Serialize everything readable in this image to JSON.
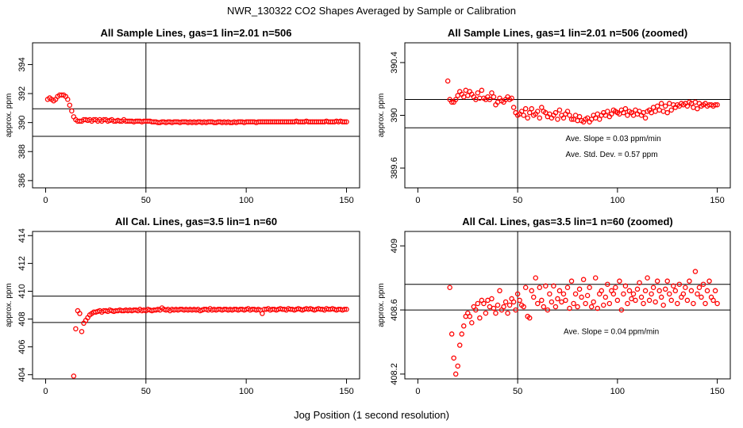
{
  "figure": {
    "title": "NWR_130322  CO2 Shapes Averaged by Sample or Calibration",
    "xlabel": "Jog Position (1 second resolution)"
  },
  "colors": {
    "points": "#ff0000",
    "axes": "#000000"
  },
  "chart_data": [
    {
      "type": "scatter",
      "title": "All Sample Lines, gas=1 lin=2.01 n=506",
      "ylabel": "approx. ppm",
      "xlim": [
        0,
        150
      ],
      "ylim": [
        385.5,
        395.5
      ],
      "xticks": [
        0,
        50,
        100,
        150
      ],
      "yticks": [
        386,
        388,
        390,
        392,
        394
      ],
      "hlines": [
        390.95,
        389.05
      ],
      "vline": 50,
      "annotations": [],
      "series": [
        {
          "x_start": 1,
          "x_step": 1,
          "y": [
            391.6,
            391.7,
            391.6,
            391.5,
            391.6,
            391.8,
            391.9,
            391.9,
            391.9,
            391.8,
            391.6,
            391.2,
            390.8,
            390.4,
            390.2,
            390.1,
            390.1,
            390.1,
            390.2,
            390.2,
            390.15,
            390.2,
            390.1,
            390.2,
            390.2,
            390.1,
            390.2,
            390.1,
            390.2,
            390.2,
            390.1,
            390.15,
            390.2,
            390.1,
            390.1,
            390.15,
            390.1,
            390.1,
            390.2,
            390.1,
            390.1,
            390.1,
            390.1,
            390.05,
            390.1,
            390.1,
            390.1,
            390.05,
            390.1,
            390.1,
            390.1,
            390.1,
            390.05,
            390.05,
            390.05,
            390.0,
            390.0,
            390.05,
            390.05,
            390.0,
            390.05,
            390.05,
            390.0,
            390.05,
            390.05,
            390.05,
            390.0,
            390.05,
            390.05,
            390.05,
            390.0,
            390.05,
            390.0,
            390.05,
            390.0,
            390.05,
            390.05,
            390.0,
            390.05,
            390.0,
            390.05,
            390.05,
            390.05,
            390.0,
            390.0,
            390.05,
            390.05,
            390.0,
            390.05,
            390.0,
            390.05,
            390.0,
            390.0,
            390.05,
            390.0,
            390.05,
            390.05,
            390.05,
            390.0,
            390.05,
            390.05,
            390.05,
            390.05,
            390.05,
            390.0,
            390.05,
            390.05,
            390.05,
            390.05,
            390.05,
            390.05,
            390.05,
            390.05,
            390.05,
            390.05,
            390.05,
            390.05,
            390.05,
            390.05,
            390.05,
            390.05,
            390.05,
            390.05,
            390.05,
            390.1,
            390.05,
            390.05,
            390.05,
            390.05,
            390.1,
            390.05,
            390.05,
            390.05,
            390.05,
            390.05,
            390.05,
            390.05,
            390.05,
            390.05,
            390.1,
            390.05,
            390.05,
            390.05,
            390.05,
            390.1,
            390.05,
            390.1,
            390.05,
            390.05,
            390.05
          ]
        }
      ]
    },
    {
      "type": "scatter",
      "title": "All Sample Lines, gas=1 lin=2.01 n=506 (zoomed)",
      "ylabel": "approx. ppm",
      "xlim": [
        0,
        150
      ],
      "ylim": [
        389.45,
        390.55
      ],
      "xticks": [
        0,
        50,
        100,
        150
      ],
      "yticks": [
        389.6,
        390.0,
        390.4
      ],
      "hlines": [
        390.12,
        389.905
      ],
      "vline": 50,
      "annotations": [
        {
          "text": "Ave. Slope =  0.03  ppm/min",
          "x": 74,
          "y": 389.805
        },
        {
          "text": "Ave. Std. Dev. =  0.57  ppm",
          "x": 74,
          "y": 389.685
        }
      ],
      "series": [
        {
          "x_start": 15,
          "x_step": 1,
          "y": [
            390.26,
            390.12,
            390.1,
            390.1,
            390.12,
            390.15,
            390.18,
            390.16,
            390.14,
            390.19,
            390.15,
            390.18,
            390.16,
            390.14,
            390.12,
            390.17,
            390.13,
            390.19,
            390.13,
            390.12,
            390.14,
            390.12,
            390.17,
            390.14,
            390.08,
            390.1,
            390.13,
            390.11,
            390.1,
            390.12,
            390.14,
            390.12,
            390.13,
            390.06,
            390.02,
            390.0,
            390.01,
            390.03,
            390.0,
            390.05,
            389.98,
            390.02,
            390.05,
            390.0,
            390.01,
            390.03,
            389.98,
            390.06,
            390.03,
            390.02,
            389.99,
            390.01,
            389.98,
            390.0,
            390.02,
            389.97,
            390.04,
            390.0,
            389.98,
            390.01,
            390.03,
            390.0,
            389.97,
            389.97,
            390.0,
            389.96,
            389.99,
            389.96,
            389.95,
            389.97,
            389.98,
            389.95,
            389.97,
            390.0,
            389.98,
            390.01,
            389.97,
            390.0,
            390.02,
            390.0,
            390.03,
            389.99,
            390.01,
            390.04,
            390.03,
            390.02,
            390.01,
            390.04,
            390.02,
            390.05,
            390.0,
            390.03,
            390.02,
            390.0,
            390.04,
            390.01,
            390.03,
            390.0,
            390.02,
            389.98,
            390.03,
            390.04,
            390.02,
            390.06,
            390.03,
            390.07,
            390.04,
            390.09,
            390.03,
            390.07,
            390.02,
            390.09,
            390.04,
            390.08,
            390.06,
            390.08,
            390.07,
            390.09,
            390.08,
            390.09,
            390.07,
            390.1,
            390.09,
            390.06,
            390.1,
            390.05,
            390.09,
            390.07,
            390.08,
            390.09,
            390.07,
            390.08,
            390.08,
            390.07,
            390.08,
            390.08
          ]
        }
      ]
    },
    {
      "type": "scatter",
      "title": "All Cal. Lines, gas=3.5 lin=1 n=60",
      "ylabel": "approx. ppm",
      "xlim": [
        0,
        150
      ],
      "ylim": [
        403.7,
        414.3
      ],
      "xticks": [
        0,
        50,
        100,
        150
      ],
      "yticks": [
        404,
        406,
        408,
        410,
        412,
        414
      ],
      "hlines": [
        409.65,
        407.75
      ],
      "vline": 50,
      "annotations": [],
      "series": [
        {
          "x_start": 14,
          "x_step": 1,
          "y": [
            403.9,
            407.3,
            408.6,
            408.4,
            407.1,
            407.7,
            407.9,
            408.1,
            408.3,
            408.4,
            408.5,
            408.5,
            408.55,
            408.6,
            408.5,
            408.6,
            408.6,
            408.55,
            408.65,
            408.6,
            408.55,
            408.6,
            408.6,
            408.65,
            408.6,
            408.6,
            408.65,
            408.6,
            408.65,
            408.6,
            408.65,
            408.65,
            408.6,
            408.7,
            408.6,
            408.65,
            408.6,
            408.7,
            408.65,
            408.6,
            408.65,
            408.65,
            408.7,
            408.65,
            408.8,
            408.7,
            408.65,
            408.7,
            408.6,
            408.7,
            408.65,
            408.7,
            408.65,
            408.7,
            408.7,
            408.65,
            408.7,
            408.65,
            408.7,
            408.65,
            408.7,
            408.65,
            408.7,
            408.6,
            408.65,
            408.7,
            408.7,
            408.65,
            408.75,
            408.65,
            408.7,
            408.65,
            408.7,
            408.7,
            408.65,
            408.7,
            408.7,
            408.65,
            408.7,
            408.65,
            408.7,
            408.7,
            408.65,
            408.7,
            408.7,
            408.65,
            408.7,
            408.75,
            408.65,
            408.7,
            408.7,
            408.65,
            408.7,
            408.65,
            408.4,
            408.7,
            408.7,
            408.75,
            408.65,
            408.7,
            408.7,
            408.65,
            408.7,
            408.75,
            408.7,
            408.7,
            408.65,
            408.75,
            408.7,
            408.7,
            408.65,
            408.7,
            408.75,
            408.7,
            408.65,
            408.7,
            408.75,
            408.7,
            408.75,
            408.7,
            408.65,
            408.7,
            408.75,
            408.7,
            408.7,
            408.65,
            408.75,
            408.7,
            408.7,
            408.75,
            408.7,
            408.65,
            408.7,
            408.7,
            408.65,
            408.7,
            408.7
          ]
        }
      ]
    },
    {
      "type": "scatter",
      "title": "All Cal. Lines, gas=3.5 lin=1 n=60 (zoomed)",
      "ylabel": "approx. ppm",
      "xlim": [
        0,
        150
      ],
      "ylim": [
        408.17,
        409.09
      ],
      "xticks": [
        0,
        50,
        100,
        150
      ],
      "yticks": [
        408.2,
        408.6,
        409.0
      ],
      "hlines": [
        408.76,
        408.6
      ],
      "vline": 50,
      "annotations": [
        {
          "text": "Ave. Slope =  0.04  ppm/min",
          "x": 73,
          "y": 408.45
        }
      ],
      "series": [
        {
          "x_start": 16,
          "x_step": 1,
          "y": [
            408.74,
            408.45,
            408.3,
            408.2,
            408.25,
            408.38,
            408.45,
            408.5,
            408.56,
            408.58,
            408.56,
            408.52,
            408.62,
            408.6,
            408.64,
            408.55,
            408.66,
            408.64,
            408.58,
            408.66,
            408.62,
            408.67,
            408.61,
            408.58,
            408.63,
            408.72,
            408.6,
            408.62,
            408.65,
            408.58,
            408.63,
            408.67,
            408.65,
            408.6,
            408.7,
            408.66,
            408.63,
            408.62,
            408.74,
            408.56,
            408.55,
            408.72,
            408.68,
            408.8,
            408.64,
            408.74,
            408.66,
            408.62,
            408.75,
            408.6,
            408.7,
            408.65,
            408.75,
            408.62,
            408.67,
            408.72,
            408.65,
            408.7,
            408.66,
            408.74,
            408.61,
            408.78,
            408.64,
            408.7,
            408.62,
            408.73,
            408.68,
            408.79,
            408.64,
            408.69,
            408.74,
            408.62,
            408.65,
            408.8,
            408.61,
            408.7,
            408.72,
            408.63,
            408.68,
            408.76,
            408.64,
            408.72,
            408.7,
            408.74,
            408.66,
            408.78,
            408.6,
            408.7,
            408.75,
            408.64,
            408.72,
            408.67,
            408.7,
            408.66,
            408.73,
            408.77,
            408.68,
            408.64,
            408.72,
            408.8,
            408.66,
            408.7,
            408.74,
            408.65,
            408.78,
            408.72,
            408.68,
            408.63,
            408.73,
            408.78,
            408.7,
            408.66,
            408.75,
            408.72,
            408.64,
            408.76,
            408.68,
            408.7,
            408.74,
            408.66,
            408.78,
            408.72,
            408.64,
            408.84,
            408.7,
            408.74,
            408.68,
            408.76,
            408.64,
            408.72,
            408.78,
            408.68,
            408.66,
            408.72,
            408.64
          ]
        }
      ]
    }
  ]
}
